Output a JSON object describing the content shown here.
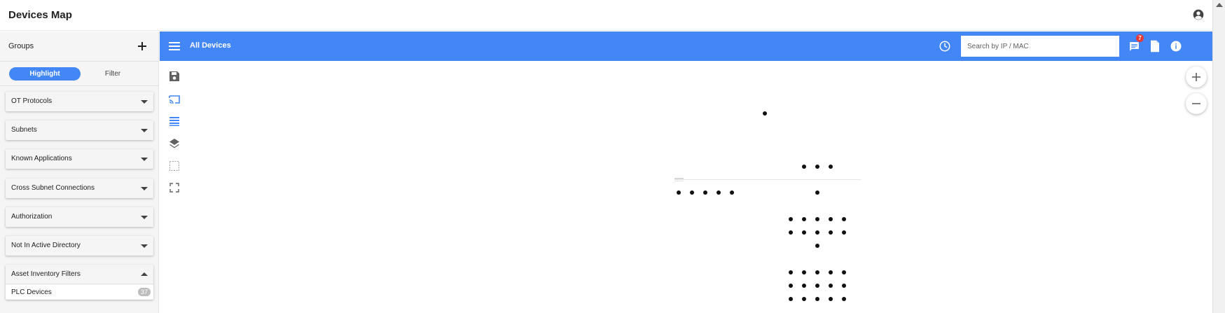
{
  "app": {
    "title": "Devices Map"
  },
  "sidebar": {
    "title": "Groups",
    "mode": {
      "highlight_label": "Highlight",
      "filter_label": "Filter"
    },
    "sections": [
      {
        "label": "OT Protocols"
      },
      {
        "label": "Subnets"
      },
      {
        "label": "Known Applications"
      },
      {
        "label": "Cross Subnet Connections"
      },
      {
        "label": "Authorization"
      },
      {
        "label": "Not In Active Directory"
      }
    ],
    "expanded_section": {
      "label": "Asset Inventory Filters",
      "items": [
        {
          "label": "PLC Devices",
          "count": "37"
        }
      ]
    }
  },
  "toolbar": {
    "title": "All Devices",
    "search_placeholder": "Search by IP / MAC",
    "notifications_count": "7"
  },
  "colors": {
    "accent": "#4287f5",
    "badge": "#e53935",
    "node": "#111111"
  },
  "icons": {
    "user": "account-circle-icon",
    "add": "plus-icon",
    "menu": "hamburger-menu-icon",
    "history": "clock-history-icon",
    "messages": "chat-icon",
    "document": "document-icon",
    "info": "info-icon",
    "tools": [
      "save-icon",
      "cast-icon",
      "list-view-icon",
      "layers-icon",
      "selection-icon",
      "fullscreen-icon"
    ],
    "zoom": [
      "zoom-in-icon",
      "zoom-out-icon"
    ]
  }
}
